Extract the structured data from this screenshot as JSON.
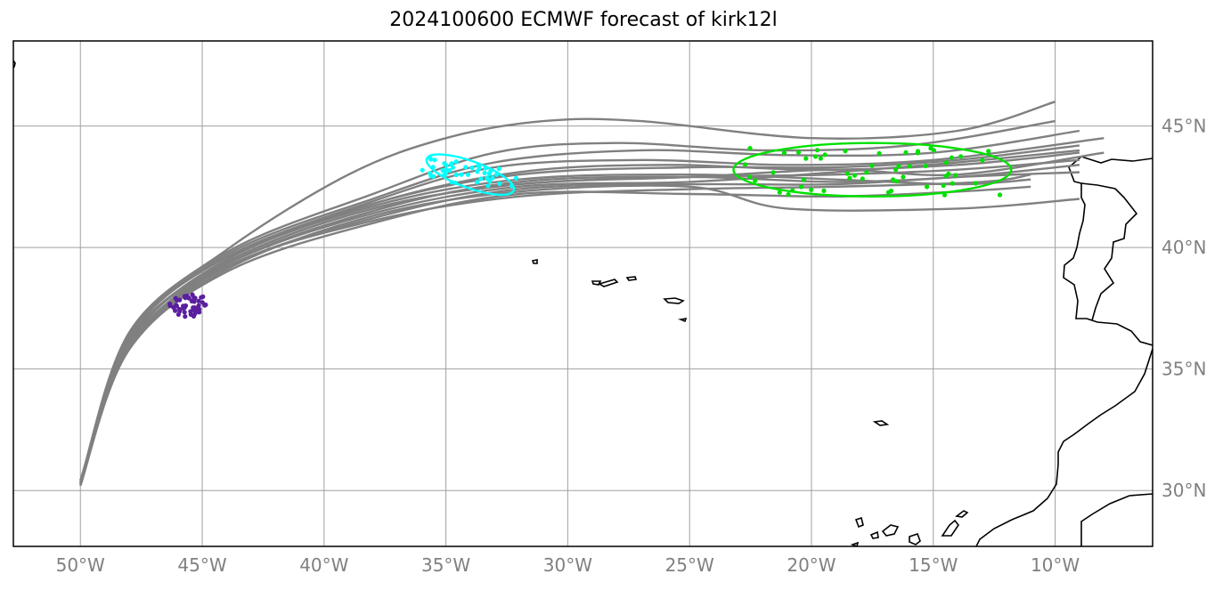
{
  "title": "2024100600 ECMWF forecast of kirk12l",
  "chart_data": {
    "type": "map",
    "projection": "equirectangular",
    "extent": {
      "lon": [
        -52.75,
        -6.0
      ],
      "lat": [
        27.7,
        48.5
      ]
    },
    "grid": true,
    "lon_ticks": [
      -50,
      -45,
      -40,
      -35,
      -30,
      -25,
      -20,
      -15,
      -10
    ],
    "lon_tick_labels": [
      "50°W",
      "45°W",
      "40°W",
      "35°W",
      "30°W",
      "25°W",
      "20°W",
      "15°W",
      "10°W"
    ],
    "lat_ticks": [
      30,
      35,
      40,
      45
    ],
    "lat_tick_labels": [
      "30°N",
      "35°N",
      "40°N",
      "45°N"
    ],
    "colors": {
      "tracks": "#808080",
      "early": "#5a1f9e",
      "mid": "#00ffff",
      "late": "#00e000",
      "coast": "#000000",
      "grid": "#a0a0a0"
    },
    "ensemble_tracks": [
      {
        "member": 1,
        "points": [
          [
            -50,
            30.3
          ],
          [
            -48,
            36.2
          ],
          [
            -44,
            39.4
          ],
          [
            -38,
            41.6
          ],
          [
            -32,
            42.6
          ],
          [
            -25,
            42.9
          ],
          [
            -19,
            43.0
          ],
          [
            -14,
            43.2
          ],
          [
            -9,
            43.6
          ]
        ]
      },
      {
        "member": 2,
        "points": [
          [
            -50,
            30.4
          ],
          [
            -48,
            36.0
          ],
          [
            -44,
            39.2
          ],
          [
            -38,
            41.2
          ],
          [
            -32,
            42.4
          ],
          [
            -25,
            42.6
          ],
          [
            -19,
            42.6
          ],
          [
            -14,
            42.9
          ],
          [
            -9,
            43.1
          ]
        ]
      },
      {
        "member": 3,
        "points": [
          [
            -50,
            30.3
          ],
          [
            -48,
            36.3
          ],
          [
            -44,
            39.6
          ],
          [
            -38,
            41.8
          ],
          [
            -32,
            43.0
          ],
          [
            -25,
            43.3
          ],
          [
            -19,
            43.3
          ],
          [
            -14,
            43.6
          ],
          [
            -9,
            44.2
          ]
        ]
      },
      {
        "member": 4,
        "points": [
          [
            -50,
            30.2
          ],
          [
            -48,
            35.8
          ],
          [
            -44,
            39.0
          ],
          [
            -38,
            41.0
          ],
          [
            -32,
            42.2
          ],
          [
            -25,
            42.2
          ],
          [
            -19,
            42.1
          ],
          [
            -14,
            42.3
          ],
          [
            -11,
            42.5
          ]
        ]
      },
      {
        "member": 5,
        "points": [
          [
            -50,
            30.3
          ],
          [
            -48,
            36.4
          ],
          [
            -44,
            39.8
          ],
          [
            -38,
            42.2
          ],
          [
            -33,
            43.9
          ],
          [
            -28,
            44.3
          ],
          [
            -22,
            44.0
          ],
          [
            -16,
            44.2
          ],
          [
            -10,
            45.2
          ]
        ]
      },
      {
        "member": 6,
        "points": [
          [
            -50,
            30.4
          ],
          [
            -48,
            36.1
          ],
          [
            -44,
            39.5
          ],
          [
            -38,
            41.7
          ],
          [
            -32,
            42.8
          ],
          [
            -25,
            43.0
          ],
          [
            -19,
            42.8
          ],
          [
            -14,
            42.6
          ],
          [
            -11,
            42.8
          ]
        ]
      },
      {
        "member": 7,
        "points": [
          [
            -50,
            30.3
          ],
          [
            -48,
            36.2
          ],
          [
            -44,
            39.3
          ],
          [
            -38,
            41.4
          ],
          [
            -32,
            42.5
          ],
          [
            -25,
            42.7
          ],
          [
            -19,
            43.1
          ],
          [
            -14,
            43.5
          ],
          [
            -9,
            44.0
          ]
        ]
      },
      {
        "member": 8,
        "points": [
          [
            -50,
            30.2
          ],
          [
            -48,
            35.9
          ],
          [
            -44,
            39.1
          ],
          [
            -38,
            41.3
          ],
          [
            -32,
            42.3
          ],
          [
            -25,
            42.5
          ],
          [
            -21,
            41.6
          ],
          [
            -14,
            41.6
          ],
          [
            -9,
            42.0
          ]
        ]
      },
      {
        "member": 9,
        "points": [
          [
            -50,
            30.3
          ],
          [
            -48,
            36.5
          ],
          [
            -44,
            39.9
          ],
          [
            -39,
            43.0
          ],
          [
            -35,
            44.5
          ],
          [
            -31,
            45.2
          ],
          [
            -27,
            45.2
          ],
          [
            -20,
            44.5
          ],
          [
            -14,
            44.8
          ],
          [
            -10,
            46.0
          ]
        ]
      },
      {
        "member": 10,
        "points": [
          [
            -50,
            30.4
          ],
          [
            -48,
            36.3
          ],
          [
            -44,
            39.7
          ],
          [
            -38,
            42.0
          ],
          [
            -33,
            43.5
          ],
          [
            -27,
            44.0
          ],
          [
            -21,
            43.8
          ],
          [
            -15,
            43.9
          ],
          [
            -9,
            44.8
          ]
        ]
      },
      {
        "member": 11,
        "points": [
          [
            -50,
            30.3
          ],
          [
            -48,
            36.0
          ],
          [
            -44,
            39.3
          ],
          [
            -38,
            41.5
          ],
          [
            -32,
            42.7
          ],
          [
            -25,
            42.9
          ],
          [
            -19,
            42.7
          ],
          [
            -14,
            42.9
          ],
          [
            -9,
            43.4
          ]
        ]
      },
      {
        "member": 12,
        "points": [
          [
            -50,
            30.2
          ],
          [
            -48,
            36.2
          ],
          [
            -44,
            39.4
          ],
          [
            -38,
            41.6
          ],
          [
            -32,
            42.6
          ],
          [
            -25,
            42.9
          ],
          [
            -19,
            43.2
          ],
          [
            -14,
            43.0
          ],
          [
            -8,
            43.9
          ]
        ]
      },
      {
        "member": 13,
        "points": [
          [
            -50,
            30.3
          ],
          [
            -48,
            36.4
          ],
          [
            -44,
            39.6
          ],
          [
            -38,
            41.9
          ],
          [
            -33,
            43.3
          ],
          [
            -27,
            43.6
          ],
          [
            -21,
            43.4
          ],
          [
            -15,
            43.6
          ],
          [
            -8,
            44.5
          ]
        ]
      },
      {
        "member": 14,
        "points": [
          [
            -50,
            30.4
          ],
          [
            -48,
            35.9
          ],
          [
            -44,
            39.2
          ],
          [
            -38,
            41.1
          ],
          [
            -32,
            42.1
          ],
          [
            -25,
            42.4
          ],
          [
            -19,
            42.5
          ],
          [
            -13,
            42.7
          ],
          [
            -11,
            43.0
          ]
        ]
      },
      {
        "member": 15,
        "points": [
          [
            -50,
            30.3
          ],
          [
            -48,
            36.1
          ],
          [
            -44,
            39.5
          ],
          [
            -38,
            41.8
          ],
          [
            -32,
            43.1
          ],
          [
            -26,
            43.4
          ],
          [
            -20,
            43.2
          ],
          [
            -14,
            43.4
          ],
          [
            -9,
            43.9
          ]
        ]
      }
    ],
    "positions_early": {
      "center": [
        -45.6,
        37.6
      ],
      "count": 50
    },
    "positions_mid": {
      "center": [
        -34.0,
        43.0
      ],
      "count": 45
    },
    "positions_late": {
      "center": [
        -17.5,
        43.1
      ],
      "count": 55
    },
    "ellipse_mid": {
      "center": [
        -34.0,
        43.0
      ],
      "rx_deg": 1.9,
      "ry_deg": 0.55,
      "rotation": 20
    },
    "ellipse_late": {
      "center": [
        -17.5,
        43.2
      ],
      "rx_deg": 5.7,
      "ry_deg": 1.1,
      "rotation": 0
    }
  }
}
